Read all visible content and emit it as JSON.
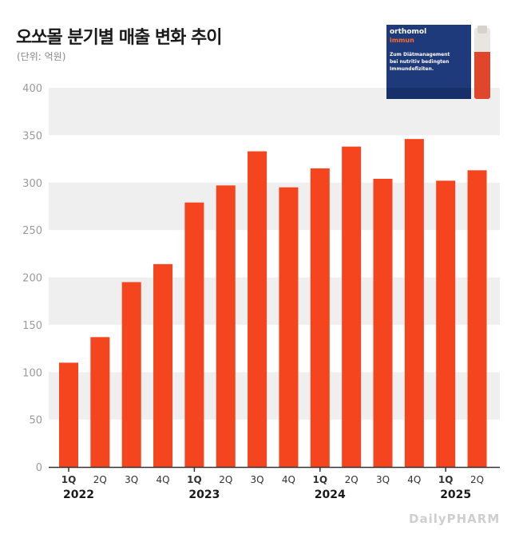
{
  "title": "오쏘몰 분기별 매출 변화 추이",
  "unit_label": "(단위: 억원)",
  "product": {
    "brand": "orthomol",
    "sub": "immun",
    "line1": "Zum Diätmanagement",
    "line2": "bei nutritiv bedingten",
    "line3": "Immundefiziten."
  },
  "watermark": "DailyPHARM",
  "colors": {
    "bar": "#f4451f",
    "band": "#efefef",
    "axis": "#333333",
    "tick_label": "#9a9a9a"
  },
  "chart_data": {
    "type": "bar",
    "categories": [
      "1Q",
      "2Q",
      "3Q",
      "4Q",
      "1Q",
      "2Q",
      "3Q",
      "4Q",
      "1Q",
      "2Q",
      "3Q",
      "4Q",
      "1Q",
      "2Q"
    ],
    "year_groups": [
      {
        "label": "2022",
        "start": 0,
        "end": 3
      },
      {
        "label": "2023",
        "start": 4,
        "end": 7
      },
      {
        "label": "2024",
        "start": 8,
        "end": 11
      },
      {
        "label": "2025",
        "start": 12,
        "end": 13
      }
    ],
    "values": [
      110,
      137,
      195,
      214,
      279,
      297,
      333,
      295,
      315,
      338,
      304,
      346,
      302,
      313
    ],
    "yticks": [
      0,
      50,
      100,
      150,
      200,
      250,
      300,
      350,
      400
    ],
    "ylim": [
      0,
      400
    ],
    "grid": "alternating bands"
  }
}
